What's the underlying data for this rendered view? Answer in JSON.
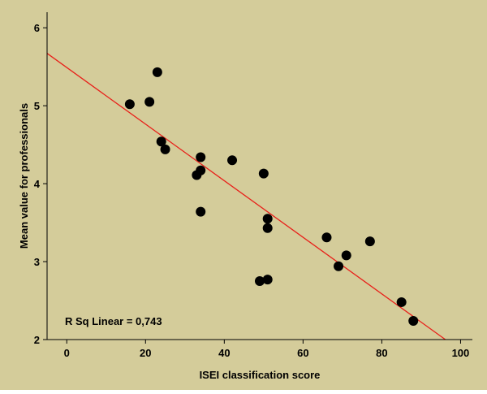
{
  "chart_data": {
    "type": "scatter",
    "title": "",
    "xlabel": "ISEI classification score",
    "ylabel": "Mean value for professionals",
    "xlim": [
      -5,
      103
    ],
    "ylim": [
      2,
      6.2
    ],
    "xticks": [
      0,
      20,
      40,
      60,
      80,
      100
    ],
    "yticks": [
      2,
      3,
      4,
      5,
      6
    ],
    "grid": false,
    "legend": "none",
    "annotation": "R Sq Linear = 0,743",
    "colors": {
      "background": "#d4cc9a",
      "points": "#000000",
      "fit_line": "#e8201a",
      "axes": "#000000"
    },
    "fit_line": {
      "type": "linear",
      "intercept": 5.49,
      "slope": -0.0363
    },
    "series": [
      {
        "x": [
          16,
          21,
          23,
          24,
          25,
          33,
          34,
          34,
          34,
          42,
          49,
          50,
          51,
          51,
          51,
          66,
          69,
          71,
          77,
          85,
          88
        ],
        "y": [
          5.02,
          5.05,
          5.43,
          4.54,
          4.44,
          4.11,
          4.17,
          4.34,
          3.64,
          4.3,
          2.75,
          4.13,
          2.77,
          3.55,
          3.43,
          3.31,
          2.94,
          3.08,
          3.26,
          2.48,
          2.24
        ]
      }
    ]
  }
}
